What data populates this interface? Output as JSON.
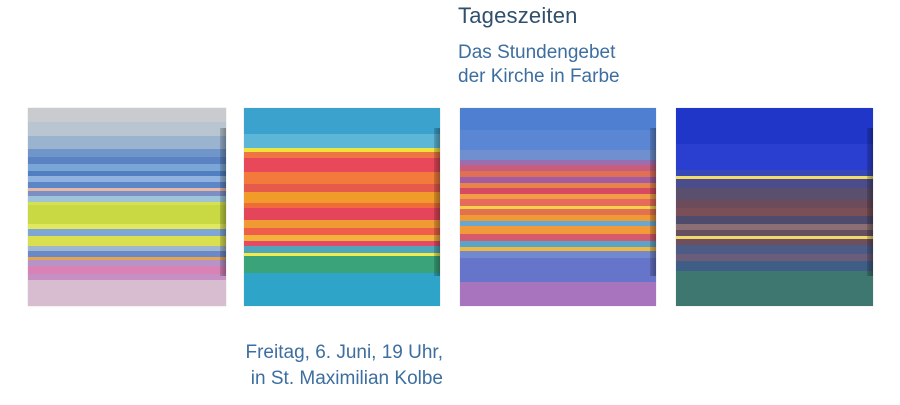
{
  "title": "Tageszeiten",
  "subtitle": {
    "line1": "Das Stundengebet",
    "line2": "der Kirche in Farbe"
  },
  "event": {
    "line1": "Freitag, 6. Juni, 19 Uhr,",
    "line2": "in St. Maximilian Kolbe"
  },
  "paintings": [
    {
      "name": "painting-1",
      "stripes": [
        [
          "#c9cbcf",
          0,
          14
        ],
        [
          "#b9c6d2",
          14,
          28
        ],
        [
          "#9ab4d0",
          28,
          41
        ],
        [
          "#6f95c9",
          41,
          49
        ],
        [
          "#5b83c4",
          49,
          56
        ],
        [
          "#7aa6d6",
          56,
          63
        ],
        [
          "#4f7ec2",
          63,
          68
        ],
        [
          "#8fb3de",
          68,
          74
        ],
        [
          "#5d86c8",
          74,
          80
        ],
        [
          "#e7b8a6",
          80,
          83
        ],
        [
          "#7b8fc6",
          83,
          88
        ],
        [
          "#9fc4d8",
          88,
          94
        ],
        [
          "#d7e04e",
          94,
          97
        ],
        [
          "#c9d944",
          97,
          116
        ],
        [
          "#e2e85e",
          116,
          121
        ],
        [
          "#7ea5d3",
          121,
          128
        ],
        [
          "#d9df4f",
          128,
          138
        ],
        [
          "#9fb6cf",
          138,
          143
        ],
        [
          "#6a89c8",
          143,
          149
        ],
        [
          "#e3a64f",
          149,
          152
        ],
        [
          "#b694c9",
          152,
          158
        ],
        [
          "#d982b6",
          158,
          166
        ],
        [
          "#c790c4",
          166,
          172
        ],
        [
          "#d8bdd0",
          172,
          198
        ]
      ]
    },
    {
      "name": "painting-2",
      "stripes": [
        [
          "#3aa2cc",
          0,
          26
        ],
        [
          "#5cb6d8",
          26,
          40
        ],
        [
          "#f0e33e",
          40,
          44
        ],
        [
          "#ef7443",
          44,
          50
        ],
        [
          "#e8485a",
          50,
          64
        ],
        [
          "#f27a3a",
          64,
          76
        ],
        [
          "#e65a4c",
          76,
          84
        ],
        [
          "#f19c2a",
          84,
          95
        ],
        [
          "#ef6b3a",
          95,
          100
        ],
        [
          "#e4455a",
          100,
          112
        ],
        [
          "#f09a34",
          112,
          120
        ],
        [
          "#ef5e48",
          120,
          127
        ],
        [
          "#f2b23c",
          127,
          133
        ],
        [
          "#e24a66",
          133,
          138
        ],
        [
          "#4fa6bb",
          138,
          145
        ],
        [
          "#f3ea4c",
          145,
          148
        ],
        [
          "#3aa37a",
          148,
          165
        ],
        [
          "#2ea5c8",
          165,
          198
        ]
      ]
    },
    {
      "name": "painting-3",
      "stripes": [
        [
          "#4f7fd1",
          0,
          22
        ],
        [
          "#5b86d3",
          22,
          42
        ],
        [
          "#6f8fce",
          42,
          52
        ],
        [
          "#9a6fb2",
          52,
          57
        ],
        [
          "#c95e7c",
          57,
          63
        ],
        [
          "#df6f55",
          63,
          69
        ],
        [
          "#a15ca2",
          69,
          75
        ],
        [
          "#e8834c",
          75,
          80
        ],
        [
          "#d64b62",
          80,
          86
        ],
        [
          "#f39e46",
          86,
          91
        ],
        [
          "#e76b5a",
          91,
          98
        ],
        [
          "#f4d34a",
          98,
          101
        ],
        [
          "#e27150",
          101,
          107
        ],
        [
          "#ef9a32",
          107,
          113
        ],
        [
          "#6aa7d0",
          113,
          118
        ],
        [
          "#f29a3a",
          118,
          126
        ],
        [
          "#d45a6e",
          126,
          133
        ],
        [
          "#5ba4c9",
          133,
          139
        ],
        [
          "#f0b83d",
          139,
          143
        ],
        [
          "#7089cf",
          143,
          150
        ],
        [
          "#6674c9",
          150,
          174
        ],
        [
          "#a874be",
          174,
          198
        ]
      ]
    },
    {
      "name": "painting-4",
      "stripes": [
        [
          "#1f36c9",
          0,
          36
        ],
        [
          "#2a3fd0",
          36,
          62
        ],
        [
          "#3749b8",
          62,
          68
        ],
        [
          "#f0de6a",
          68,
          71
        ],
        [
          "#4b4c8c",
          71,
          80
        ],
        [
          "#5a4f6c",
          80,
          92
        ],
        [
          "#6c4b5a",
          92,
          100
        ],
        [
          "#7a4f58",
          100,
          108
        ],
        [
          "#4f4b6d",
          108,
          116
        ],
        [
          "#8c6f74",
          116,
          122
        ],
        [
          "#665060",
          122,
          128
        ],
        [
          "#f2d96a",
          128,
          131
        ],
        [
          "#6d4f5d",
          131,
          137
        ],
        [
          "#4d5c86",
          137,
          146
        ],
        [
          "#6b5c7a",
          146,
          153
        ],
        [
          "#3f5e86",
          153,
          163
        ],
        [
          "#3e7770",
          163,
          198
        ]
      ]
    }
  ]
}
